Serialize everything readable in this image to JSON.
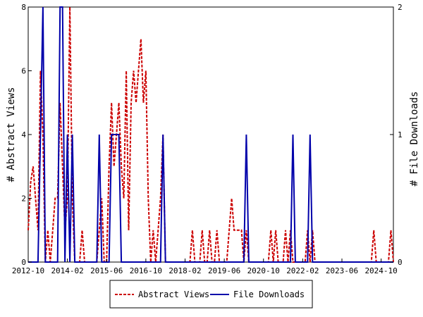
{
  "chart_data": {
    "type": "line",
    "x_tick_labels": [
      "2012-10",
      "2014-02",
      "2015-06",
      "2016-10",
      "2018-02",
      "2019-06",
      "2020-10",
      "2022-02",
      "2023-06",
      "2024-10"
    ],
    "y_left": {
      "label": "# Abstract Views",
      "ylim": [
        0,
        8
      ],
      "ticks": [
        "0",
        "2",
        "4",
        "6",
        "8"
      ]
    },
    "y_right": {
      "label": "# File Downloads",
      "ylim": [
        0,
        2
      ],
      "ticks": [
        "0",
        "1",
        "2"
      ]
    },
    "series": [
      {
        "name": "Abstract Views",
        "axis": "left",
        "color": "#cc0000",
        "style": "dashed",
        "points": [
          [
            0,
            1
          ],
          [
            1,
            2.5
          ],
          [
            2,
            3
          ],
          [
            3,
            2
          ],
          [
            4,
            1
          ],
          [
            5,
            6
          ],
          [
            6,
            4
          ],
          [
            7,
            0
          ],
          [
            8,
            1
          ],
          [
            9,
            0
          ],
          [
            10,
            1
          ],
          [
            11,
            2
          ],
          [
            12,
            2
          ],
          [
            13,
            5
          ],
          [
            14,
            3
          ],
          [
            15,
            1
          ],
          [
            16,
            2
          ],
          [
            17,
            8
          ],
          [
            18,
            2
          ],
          [
            19,
            0
          ],
          [
            20,
            0
          ],
          [
            21,
            0
          ],
          [
            22,
            1
          ],
          [
            23,
            0
          ],
          [
            24,
            0
          ],
          [
            25,
            0
          ],
          [
            26,
            0
          ],
          [
            27,
            0
          ],
          [
            28,
            0
          ],
          [
            29,
            1
          ],
          [
            30,
            2
          ],
          [
            31,
            0
          ],
          [
            32,
            0
          ],
          [
            33,
            3
          ],
          [
            34,
            5
          ],
          [
            35,
            3
          ],
          [
            36,
            4
          ],
          [
            37,
            5
          ],
          [
            38,
            3
          ],
          [
            39,
            2
          ],
          [
            40,
            6
          ],
          [
            41,
            1
          ],
          [
            42,
            5
          ],
          [
            43,
            6
          ],
          [
            44,
            5
          ],
          [
            45,
            6
          ],
          [
            46,
            7
          ],
          [
            47,
            5
          ],
          [
            48,
            6
          ],
          [
            49,
            2
          ],
          [
            50,
            0
          ],
          [
            51,
            1
          ],
          [
            52,
            0
          ],
          [
            53,
            1
          ],
          [
            54,
            2
          ],
          [
            55,
            4
          ],
          [
            56,
            0
          ],
          [
            57,
            0
          ],
          [
            58,
            0
          ],
          [
            59,
            0
          ],
          [
            60,
            0
          ],
          [
            61,
            0
          ],
          [
            62,
            0
          ],
          [
            63,
            0
          ],
          [
            64,
            0
          ],
          [
            65,
            0
          ],
          [
            66,
            0
          ],
          [
            67,
            1
          ],
          [
            68,
            0
          ],
          [
            69,
            0
          ],
          [
            70,
            0
          ],
          [
            71,
            1
          ],
          [
            72,
            0
          ],
          [
            73,
            0
          ],
          [
            74,
            1
          ],
          [
            75,
            0
          ],
          [
            76,
            0
          ],
          [
            77,
            1
          ],
          [
            78,
            0
          ],
          [
            79,
            0
          ],
          [
            80,
            0
          ],
          [
            81,
            0
          ],
          [
            82,
            1
          ],
          [
            83,
            2
          ],
          [
            84,
            1
          ],
          [
            85,
            1
          ],
          [
            86,
            1
          ],
          [
            87,
            1
          ],
          [
            88,
            0
          ],
          [
            89,
            1
          ],
          [
            90,
            0
          ],
          [
            91,
            0
          ],
          [
            92,
            0
          ],
          [
            93,
            0
          ],
          [
            94,
            0
          ],
          [
            95,
            0
          ],
          [
            96,
            0
          ],
          [
            97,
            0
          ],
          [
            98,
            0
          ],
          [
            99,
            1
          ],
          [
            100,
            0
          ],
          [
            101,
            1
          ],
          [
            102,
            0
          ],
          [
            103,
            0
          ],
          [
            104,
            0
          ],
          [
            105,
            1
          ],
          [
            106,
            0
          ],
          [
            107,
            1
          ],
          [
            108,
            0
          ],
          [
            109,
            0
          ],
          [
            110,
            0
          ],
          [
            111,
            0
          ],
          [
            112,
            0
          ],
          [
            113,
            0
          ],
          [
            114,
            1
          ],
          [
            115,
            0
          ],
          [
            116,
            1
          ],
          [
            117,
            0
          ],
          [
            118,
            0
          ],
          [
            119,
            0
          ],
          [
            120,
            0
          ],
          [
            121,
            0
          ],
          [
            122,
            0
          ],
          [
            123,
            0
          ],
          [
            124,
            0
          ],
          [
            125,
            0
          ],
          [
            126,
            0
          ],
          [
            127,
            0
          ],
          [
            128,
            0
          ],
          [
            129,
            0
          ],
          [
            130,
            0
          ],
          [
            131,
            0
          ],
          [
            132,
            0
          ],
          [
            133,
            0
          ],
          [
            134,
            0
          ],
          [
            135,
            0
          ],
          [
            136,
            0
          ],
          [
            137,
            0
          ],
          [
            138,
            0
          ],
          [
            139,
            0
          ],
          [
            140,
            0
          ],
          [
            141,
            1
          ],
          [
            142,
            0
          ],
          [
            143,
            0
          ],
          [
            144,
            0
          ],
          [
            145,
            0
          ],
          [
            146,
            0
          ],
          [
            147,
            0
          ],
          [
            148,
            1
          ],
          [
            149,
            0
          ]
        ]
      },
      {
        "name": "File Downloads",
        "axis": "right",
        "color": "#0000aa",
        "style": "solid",
        "points": [
          [
            0,
            0
          ],
          [
            1,
            0
          ],
          [
            2,
            0
          ],
          [
            3,
            0
          ],
          [
            4,
            0
          ],
          [
            5,
            1
          ],
          [
            6,
            2
          ],
          [
            7,
            0
          ],
          [
            8,
            0
          ],
          [
            9,
            0
          ],
          [
            10,
            0
          ],
          [
            11,
            0
          ],
          [
            12,
            0
          ],
          [
            13,
            2
          ],
          [
            14,
            2
          ],
          [
            15,
            0
          ],
          [
            16,
            1
          ],
          [
            17,
            0
          ],
          [
            18,
            1
          ],
          [
            19,
            0
          ],
          [
            20,
            0
          ],
          [
            21,
            0
          ],
          [
            22,
            0
          ],
          [
            23,
            0
          ],
          [
            24,
            0
          ],
          [
            25,
            0
          ],
          [
            26,
            0
          ],
          [
            27,
            0
          ],
          [
            28,
            0
          ],
          [
            29,
            1
          ],
          [
            30,
            0
          ],
          [
            31,
            0
          ],
          [
            32,
            0
          ],
          [
            33,
            0
          ],
          [
            34,
            1
          ],
          [
            35,
            1
          ],
          [
            36,
            1
          ],
          [
            37,
            1
          ],
          [
            38,
            0
          ],
          [
            39,
            0
          ],
          [
            40,
            0
          ],
          [
            41,
            0
          ],
          [
            42,
            0
          ],
          [
            43,
            0
          ],
          [
            44,
            0
          ],
          [
            45,
            0
          ],
          [
            46,
            0
          ],
          [
            47,
            0
          ],
          [
            48,
            0
          ],
          [
            49,
            0
          ],
          [
            50,
            0
          ],
          [
            51,
            0
          ],
          [
            52,
            0
          ],
          [
            53,
            0
          ],
          [
            54,
            0
          ],
          [
            55,
            1
          ],
          [
            56,
            0
          ],
          [
            57,
            0
          ],
          [
            58,
            0
          ],
          [
            59,
            0
          ],
          [
            60,
            0
          ],
          [
            61,
            0
          ],
          [
            62,
            0
          ],
          [
            63,
            0
          ],
          [
            64,
            0
          ],
          [
            65,
            0
          ],
          [
            66,
            0
          ],
          [
            67,
            0
          ],
          [
            68,
            0
          ],
          [
            69,
            0
          ],
          [
            70,
            0
          ],
          [
            71,
            0
          ],
          [
            72,
            0
          ],
          [
            73,
            0
          ],
          [
            74,
            0
          ],
          [
            75,
            0
          ],
          [
            76,
            0
          ],
          [
            77,
            0
          ],
          [
            78,
            0
          ],
          [
            79,
            0
          ],
          [
            80,
            0
          ],
          [
            81,
            0
          ],
          [
            82,
            0
          ],
          [
            83,
            0
          ],
          [
            84,
            0
          ],
          [
            85,
            0
          ],
          [
            86,
            0
          ],
          [
            87,
            0
          ],
          [
            88,
            0
          ],
          [
            89,
            1
          ],
          [
            90,
            0
          ],
          [
            91,
            0
          ],
          [
            92,
            0
          ],
          [
            93,
            0
          ],
          [
            94,
            0
          ],
          [
            95,
            0
          ],
          [
            96,
            0
          ],
          [
            97,
            0
          ],
          [
            98,
            0
          ],
          [
            99,
            0
          ],
          [
            100,
            0
          ],
          [
            101,
            0
          ],
          [
            102,
            0
          ],
          [
            103,
            0
          ],
          [
            104,
            0
          ],
          [
            105,
            0
          ],
          [
            106,
            0
          ],
          [
            107,
            0
          ],
          [
            108,
            1
          ],
          [
            109,
            0
          ],
          [
            110,
            0
          ],
          [
            111,
            0
          ],
          [
            112,
            0
          ],
          [
            113,
            0
          ],
          [
            114,
            0
          ],
          [
            115,
            1
          ],
          [
            116,
            0
          ],
          [
            117,
            0
          ],
          [
            118,
            0
          ],
          [
            119,
            0
          ],
          [
            120,
            0
          ],
          [
            121,
            0
          ],
          [
            122,
            0
          ],
          [
            123,
            0
          ],
          [
            124,
            0
          ],
          [
            125,
            0
          ],
          [
            126,
            0
          ],
          [
            127,
            0
          ],
          [
            128,
            0
          ],
          [
            129,
            0
          ],
          [
            130,
            0
          ],
          [
            131,
            0
          ],
          [
            132,
            0
          ],
          [
            133,
            0
          ],
          [
            134,
            0
          ],
          [
            135,
            0
          ],
          [
            136,
            0
          ],
          [
            137,
            0
          ],
          [
            138,
            0
          ],
          [
            139,
            0
          ],
          [
            140,
            0
          ],
          [
            141,
            0
          ],
          [
            142,
            0
          ],
          [
            143,
            0
          ],
          [
            144,
            0
          ],
          [
            145,
            0
          ],
          [
            146,
            0
          ],
          [
            147,
            0
          ],
          [
            148,
            0
          ],
          [
            149,
            0
          ]
        ]
      }
    ],
    "x_range": [
      0,
      149
    ],
    "x_tick_positions": [
      0,
      16,
      32,
      48,
      64,
      80,
      96,
      112,
      128,
      144
    ],
    "grid": false,
    "legend_position": "bottom-center"
  }
}
